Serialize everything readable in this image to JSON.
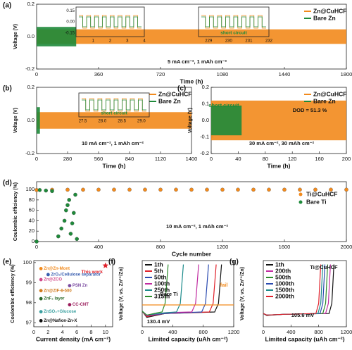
{
  "chart_data": [
    {
      "type": "band",
      "panel_label": "(a)",
      "xlabel": "Time (h)",
      "ylabel": "Voltage (V)",
      "xlim": [
        0,
        1800
      ],
      "ylim": [
        -0.2,
        0.2
      ],
      "xticks": [
        0,
        360,
        720,
        1080,
        1440,
        1800
      ],
      "yticks": [
        -0.2,
        {
          "value": 0,
          "label": "0.0"
        },
        0.2
      ],
      "series": [
        {
          "name": "Zn@CuHCF",
          "color": "#f28a1c",
          "x": [
            0,
            1800
          ],
          "values": [
            0.045,
            0.045
          ]
        },
        {
          "name": "Bare Zn",
          "color": "#1e8a3a",
          "x": [
            0,
            230
          ],
          "values": [
            0.06,
            0.06
          ]
        }
      ],
      "annotations": [
        "5 mA cm⁻², 1 mAh cm⁻²"
      ],
      "insets": [
        {
          "xlim": [
            0,
            4
          ],
          "xticks": [
            1,
            2,
            3,
            4
          ],
          "yticks": [
            0.15,
            {
              "value": 0,
              "label": "0.00"
            },
            -0.15
          ],
          "annotations": []
        },
        {
          "xlim": [
            228.5,
            232
          ],
          "xticks": [
            229,
            230,
            231,
            232
          ],
          "yticks": [],
          "annotations": [
            "short circuit"
          ]
        }
      ]
    },
    {
      "type": "band",
      "panel_label": "(b)",
      "xlabel": "Time (h)",
      "ylabel": "Voltage (V)",
      "xlim": [
        0,
        1400
      ],
      "ylim": [
        -0.2,
        0.2
      ],
      "xticks": [
        0,
        280,
        560,
        840,
        1120,
        1400
      ],
      "yticks": [
        -0.2,
        {
          "value": 0,
          "label": "0.0"
        },
        0.2
      ],
      "series": [
        {
          "name": "Zn@CuHCF",
          "color": "#f28a1c",
          "x": [
            0,
            1400
          ],
          "values": [
            0.05,
            0.05
          ]
        },
        {
          "name": "Bare Zn",
          "color": "#1e8a3a",
          "x": [
            0,
            30
          ],
          "values": [
            0.08,
            0.08
          ]
        }
      ],
      "annotations": [
        "10 mA cm⁻², 1 mAh cm⁻²"
      ],
      "insets": [
        {
          "xlim": [
            27.4,
            29.2
          ],
          "xticks": [
            27.5,
            {
              "value": 28,
              "label": "28.0"
            },
            28.5,
            {
              "value": 29,
              "label": "29.0"
            }
          ],
          "yticks": [],
          "annotations": [
            "short circuit"
          ]
        }
      ]
    },
    {
      "type": "band",
      "panel_label": "(c)",
      "xlabel": "Time (h)",
      "ylabel": "Voltage (V)",
      "xlim": [
        0,
        200
      ],
      "ylim": [
        -0.2,
        0.2
      ],
      "xticks": [
        0,
        40,
        80,
        120,
        160,
        200
      ],
      "yticks": [
        -0.2,
        -0.1,
        {
          "value": 0,
          "label": "0.0"
        },
        0.1,
        0.2
      ],
      "series": [
        {
          "name": "Zn@CuHCF",
          "color": "#f28a1c",
          "x": [
            0,
            200
          ],
          "values": [
            0.12,
            0.12
          ]
        },
        {
          "name": "Bare Zn",
          "color": "#1e8a3a",
          "x": [
            0,
            45
          ],
          "values": [
            0.09,
            0.09
          ]
        }
      ],
      "annotations": [
        "short circuit",
        "DOD = 51.3 %",
        "30 mA cm⁻², 30 mAh cm⁻²"
      ]
    },
    {
      "type": "scatter",
      "panel_label": "(d)",
      "xlabel": "Cycle number",
      "ylabel": "Coulombic efficiency (%)",
      "xlim": [
        0,
        2000
      ],
      "ylim": [
        0,
        115
      ],
      "xticks": [
        0,
        400,
        800,
        1200,
        1600,
        2000
      ],
      "yticks": [
        0,
        20,
        40,
        60,
        80,
        100
      ],
      "series": [
        {
          "name": "Ti@CuHCF",
          "color": "#f28a1c",
          "x": [
            0,
            100,
            200,
            300,
            400,
            500,
            600,
            700,
            800,
            900,
            1000,
            1100,
            1200,
            1300,
            1400,
            1500,
            1600,
            1700,
            1800,
            1900,
            2000
          ],
          "values": [
            99,
            99.5,
            99.6,
            99.6,
            99.7,
            99.7,
            99.7,
            99.7,
            99.7,
            99.7,
            99.7,
            99.7,
            99.7,
            99.7,
            99.7,
            99.7,
            99.7,
            99.7,
            99.7,
            99.7,
            99.7
          ]
        },
        {
          "name": "Bare Ti",
          "color": "#1e8a3a",
          "x": [
            0,
            20,
            60,
            100,
            140,
            160,
            180,
            190,
            200,
            210,
            220,
            230,
            240,
            250,
            260
          ],
          "values": [
            0,
            99,
            98,
            97,
            10,
            25,
            40,
            60,
            70,
            80,
            15,
            35,
            55,
            90,
            5
          ]
        }
      ],
      "annotations": [
        "10 mA cm⁻², 1 mAh cm⁻²"
      ]
    },
    {
      "type": "points",
      "panel_label": "(e)",
      "xlabel": "Current density (mA cm⁻²)",
      "ylabel": "Coulombic efficiency (%)",
      "xlim": [
        0,
        11
      ],
      "ylim": [
        96.8,
        100.1
      ],
      "xticks": [
        0,
        2,
        4,
        6,
        8,
        10
      ],
      "yticks": [
        97,
        98,
        99,
        100
      ],
      "points": [
        {
          "label": "This work",
          "x": 10,
          "y": 99.85,
          "color": "#e0202a"
        },
        {
          "label": "Zn@Zn-Mont",
          "x": 1,
          "y": 99.7,
          "color": "#f28a1c"
        },
        {
          "label": "ZrO₂/Cellulose separator",
          "x": 2,
          "y": 99.4,
          "color": "#3a5fb0"
        },
        {
          "label": "Zn@ZCO",
          "x": 1,
          "y": 99.15,
          "color": "#d04a8a"
        },
        {
          "label": "PSN Zn",
          "x": 5,
          "y": 98.85,
          "color": "#7a4aa0"
        },
        {
          "label": "Zn@ZIF-8-500",
          "x": 1,
          "y": 98.6,
          "color": "#d07a1c"
        },
        {
          "label": "ZnF₂ layer",
          "x": 1,
          "y": 98.2,
          "color": "#2a6a2a"
        },
        {
          "label": "CC-CNT",
          "x": 5,
          "y": 97.9,
          "color": "#9a1a5a"
        },
        {
          "label": "ZnSO₄+Glucose",
          "x": 1,
          "y": 97.55,
          "color": "#3aa0a0"
        },
        {
          "label": "Zn@Nafion-Zn-X",
          "x": 1,
          "y": 97.1,
          "color": "#111111"
        }
      ]
    },
    {
      "type": "line",
      "panel_label": "(f)",
      "xlabel": "Limited capacity (uAh cm⁻²)",
      "ylabel": "Voltage (V, vs. Zn²⁺/Zn)",
      "xlim": [
        0,
        1200
      ],
      "ylim": [
        -0.25,
        0.6
      ],
      "xticks": [
        0,
        400,
        800,
        1200
      ],
      "series": [
        {
          "name": "1th",
          "color": "#111111",
          "x": [
            0,
            60,
            300,
            950,
            1000,
            1040
          ],
          "values": [
            -0.05,
            -0.13,
            -0.08,
            -0.06,
            0.05,
            0.55
          ]
        },
        {
          "name": "5th",
          "color": "#e0202a",
          "x": [
            0,
            60,
            300,
            880,
            930,
            970
          ],
          "values": [
            -0.05,
            -0.12,
            -0.08,
            -0.06,
            0.05,
            0.55
          ]
        },
        {
          "name": "50th",
          "color": "#2a4ab0",
          "x": [
            0,
            60,
            300,
            780,
            830,
            870
          ],
          "values": [
            -0.05,
            -0.11,
            -0.08,
            -0.06,
            0.05,
            0.55
          ]
        },
        {
          "name": "100th",
          "color": "#c02aa0",
          "x": [
            0,
            60,
            300,
            650,
            700,
            740
          ],
          "values": [
            -0.05,
            -0.11,
            -0.07,
            -0.06,
            0.05,
            0.55
          ]
        },
        {
          "name": "250th",
          "color": "#1a8a8a",
          "x": [
            0,
            60,
            300,
            450,
            500,
            540
          ],
          "values": [
            -0.05,
            -0.1,
            -0.07,
            -0.06,
            0.05,
            0.55
          ]
        },
        {
          "name": "315th",
          "color": "#2a8a2a",
          "x": [
            0,
            60,
            200,
            260,
            300,
            340
          ],
          "values": [
            -0.05,
            -0.1,
            -0.07,
            -0.06,
            0.05,
            0.55
          ]
        },
        {
          "name": "fail",
          "color": "#f28a1c",
          "x": [
            0,
            1200
          ],
          "values": [
            0.03,
            0.03
          ]
        }
      ],
      "annotations": [
        "Bare Ti",
        "fail",
        "130.4 mV"
      ]
    },
    {
      "type": "line",
      "panel_label": "(g)",
      "xlabel": "Limited capacity (uAh cm⁻²)",
      "ylabel": "Voltage (V, vs. Zn²⁺/Zn)",
      "xlim": [
        0,
        1200
      ],
      "ylim": [
        -0.25,
        0.6
      ],
      "xticks": [
        0,
        400,
        800,
        1200
      ],
      "series": [
        {
          "name": "1th",
          "color": "#111111",
          "x": [
            0,
            50,
            300,
            950,
            990,
            1020
          ],
          "values": [
            -0.08,
            -0.105,
            -0.09,
            -0.08,
            0.05,
            0.55
          ]
        },
        {
          "name": "200th",
          "color": "#c02aa0",
          "x": [
            0,
            50,
            300,
            900,
            940,
            970
          ],
          "values": [
            -0.08,
            -0.1,
            -0.09,
            -0.08,
            0.05,
            0.55
          ]
        },
        {
          "name": "500th",
          "color": "#2a8a2a",
          "x": [
            0,
            50,
            300,
            860,
            900,
            930
          ],
          "values": [
            -0.08,
            -0.1,
            -0.09,
            -0.08,
            0.05,
            0.55
          ]
        },
        {
          "name": "1000th",
          "color": "#2a4ab0",
          "x": [
            0,
            50,
            300,
            820,
            860,
            890
          ],
          "values": [
            -0.08,
            -0.1,
            -0.09,
            -0.08,
            0.05,
            0.55
          ]
        },
        {
          "name": "1500th",
          "color": "#1a8a8a",
          "x": [
            0,
            50,
            300,
            790,
            830,
            860
          ],
          "values": [
            -0.08,
            -0.1,
            -0.09,
            -0.08,
            0.05,
            0.55
          ]
        },
        {
          "name": "2000th",
          "color": "#e0202a",
          "x": [
            0,
            50,
            300,
            760,
            800,
            830
          ],
          "values": [
            -0.08,
            -0.1,
            -0.09,
            -0.08,
            0.05,
            0.55
          ]
        }
      ],
      "annotations": [
        "Ti@CuHCF",
        "105.6 mV"
      ]
    }
  ]
}
